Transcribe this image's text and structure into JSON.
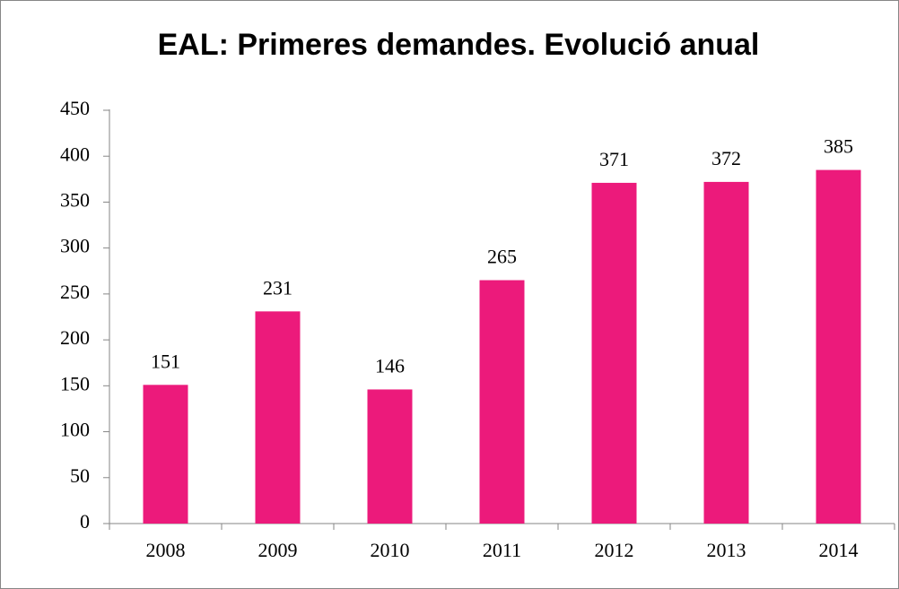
{
  "chart_data": {
    "type": "bar",
    "title": "EAL: Primeres demandes. Evolució anual",
    "categories": [
      "2008",
      "2009",
      "2010",
      "2011",
      "2012",
      "2013",
      "2014"
    ],
    "values": [
      151,
      231,
      146,
      265,
      371,
      372,
      385
    ],
    "color": "#ec1a7b",
    "ylim": [
      0,
      450
    ],
    "yticks": [
      0,
      50,
      100,
      150,
      200,
      250,
      300,
      350,
      400,
      450
    ],
    "grid": false
  }
}
